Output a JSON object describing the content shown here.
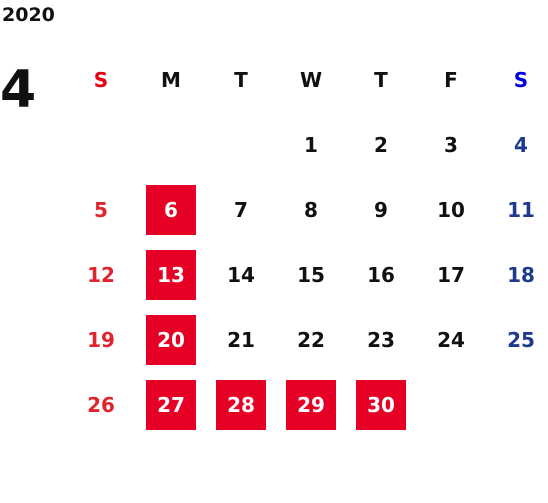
{
  "year": "2020",
  "month": "4",
  "weekdays": [
    "S",
    "M",
    "T",
    "W",
    "T",
    "F",
    "S"
  ],
  "weeks": [
    [
      null,
      null,
      null,
      {
        "label": "1"
      },
      {
        "label": "2"
      },
      {
        "label": "3"
      },
      {
        "label": "4"
      }
    ],
    [
      {
        "label": "5"
      },
      {
        "label": "6",
        "highlighted": true
      },
      {
        "label": "7"
      },
      {
        "label": "8"
      },
      {
        "label": "9"
      },
      {
        "label": "10"
      },
      {
        "label": "11"
      }
    ],
    [
      {
        "label": "12"
      },
      {
        "label": "13",
        "highlighted": true
      },
      {
        "label": "14"
      },
      {
        "label": "15"
      },
      {
        "label": "16"
      },
      {
        "label": "17"
      },
      {
        "label": "18"
      }
    ],
    [
      {
        "label": "19"
      },
      {
        "label": "20",
        "highlighted": true
      },
      {
        "label": "21"
      },
      {
        "label": "22"
      },
      {
        "label": "23"
      },
      {
        "label": "24"
      },
      {
        "label": "25"
      }
    ],
    [
      {
        "label": "26"
      },
      {
        "label": "27",
        "highlighted": true
      },
      {
        "label": "28",
        "highlighted": true
      },
      {
        "label": "29",
        "highlighted": true
      },
      {
        "label": "30",
        "highlighted": true
      },
      null,
      null
    ]
  ]
}
